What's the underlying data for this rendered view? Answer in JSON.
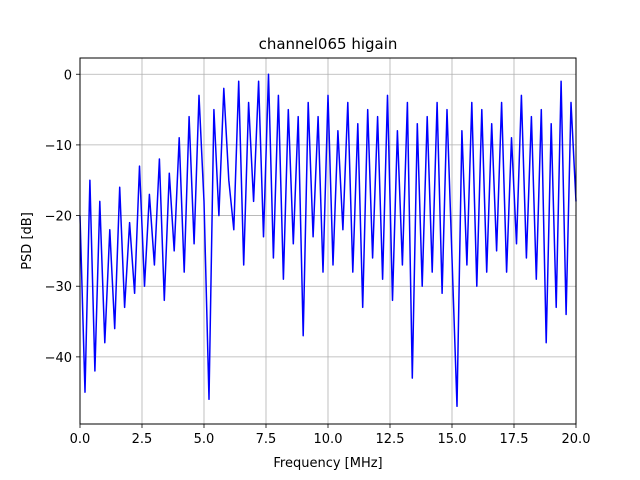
{
  "chart_data": {
    "type": "line",
    "title": "channel065 higain",
    "xlabel": "Frequency [MHz]",
    "ylabel": "PSD [dB]",
    "xlim": [
      0,
      20
    ],
    "ylim": [
      -49.5,
      2.3
    ],
    "xticks": [
      0,
      2.5,
      5,
      7.5,
      10,
      12.5,
      15,
      17.5,
      20
    ],
    "xtick_labels": [
      "0.0",
      "2.5",
      "5.0",
      "7.5",
      "10.0",
      "12.5",
      "15.0",
      "17.5",
      "20.0"
    ],
    "yticks": [
      0,
      -10,
      -20,
      -30,
      -40
    ],
    "ytick_labels": [
      "0",
      "−10",
      "−20",
      "−30",
      "−40"
    ],
    "grid": true,
    "series": [
      {
        "color": "#0000ff",
        "x": [
          0.0,
          0.2,
          0.4,
          0.6,
          0.8,
          1.0,
          1.2,
          1.4,
          1.6,
          1.8,
          2.0,
          2.2,
          2.4,
          2.6,
          2.8,
          3.0,
          3.2,
          3.4,
          3.6,
          3.8,
          4.0,
          4.2,
          4.4,
          4.6,
          4.8,
          5.0,
          5.2,
          5.4,
          5.6,
          5.8,
          6.0,
          6.2,
          6.4,
          6.6,
          6.8,
          7.0,
          7.2,
          7.4,
          7.6,
          7.8,
          8.0,
          8.2,
          8.4,
          8.6,
          8.8,
          9.0,
          9.2,
          9.4,
          9.6,
          9.8,
          10.0,
          10.2,
          10.4,
          10.6,
          10.8,
          11.0,
          11.2,
          11.4,
          11.6,
          11.8,
          12.0,
          12.2,
          12.4,
          12.6,
          12.8,
          13.0,
          13.2,
          13.4,
          13.6,
          13.8,
          14.0,
          14.2,
          14.4,
          14.6,
          14.8,
          15.0,
          15.2,
          15.4,
          15.6,
          15.8,
          16.0,
          16.2,
          16.4,
          16.6,
          16.8,
          17.0,
          17.2,
          17.4,
          17.6,
          17.8,
          18.0,
          18.2,
          18.4,
          18.6,
          18.8,
          19.0,
          19.2,
          19.4,
          19.6,
          19.8,
          20.0
        ],
        "y": [
          -20,
          -45,
          -15,
          -42,
          -18,
          -38,
          -22,
          -36,
          -16,
          -33,
          -21,
          -31,
          -13,
          -30,
          -17,
          -27,
          -12,
          -32,
          -14,
          -25,
          -9,
          -28,
          -6,
          -24,
          -3,
          -18,
          -46,
          -5,
          -20,
          -2,
          -15,
          -22,
          -1,
          -27,
          -4,
          -18,
          -1,
          -23,
          0,
          -26,
          -3,
          -29,
          -5,
          -24,
          -6,
          -37,
          -4,
          -23,
          -6,
          -28,
          -3,
          -27,
          -8,
          -22,
          -4,
          -28,
          -7,
          -33,
          -5,
          -26,
          -6,
          -29,
          -3,
          -32,
          -8,
          -27,
          -4,
          -43,
          -7,
          -30,
          -6,
          -28,
          -4,
          -31,
          -5,
          -26,
          -47,
          -8,
          -27,
          -4,
          -30,
          -5,
          -28,
          -7,
          -25,
          -4,
          -28,
          -9,
          -24,
          -3,
          -26,
          -6,
          -29,
          -5,
          -38,
          -7,
          -33,
          -1,
          -34,
          -4,
          -18
        ]
      }
    ]
  }
}
